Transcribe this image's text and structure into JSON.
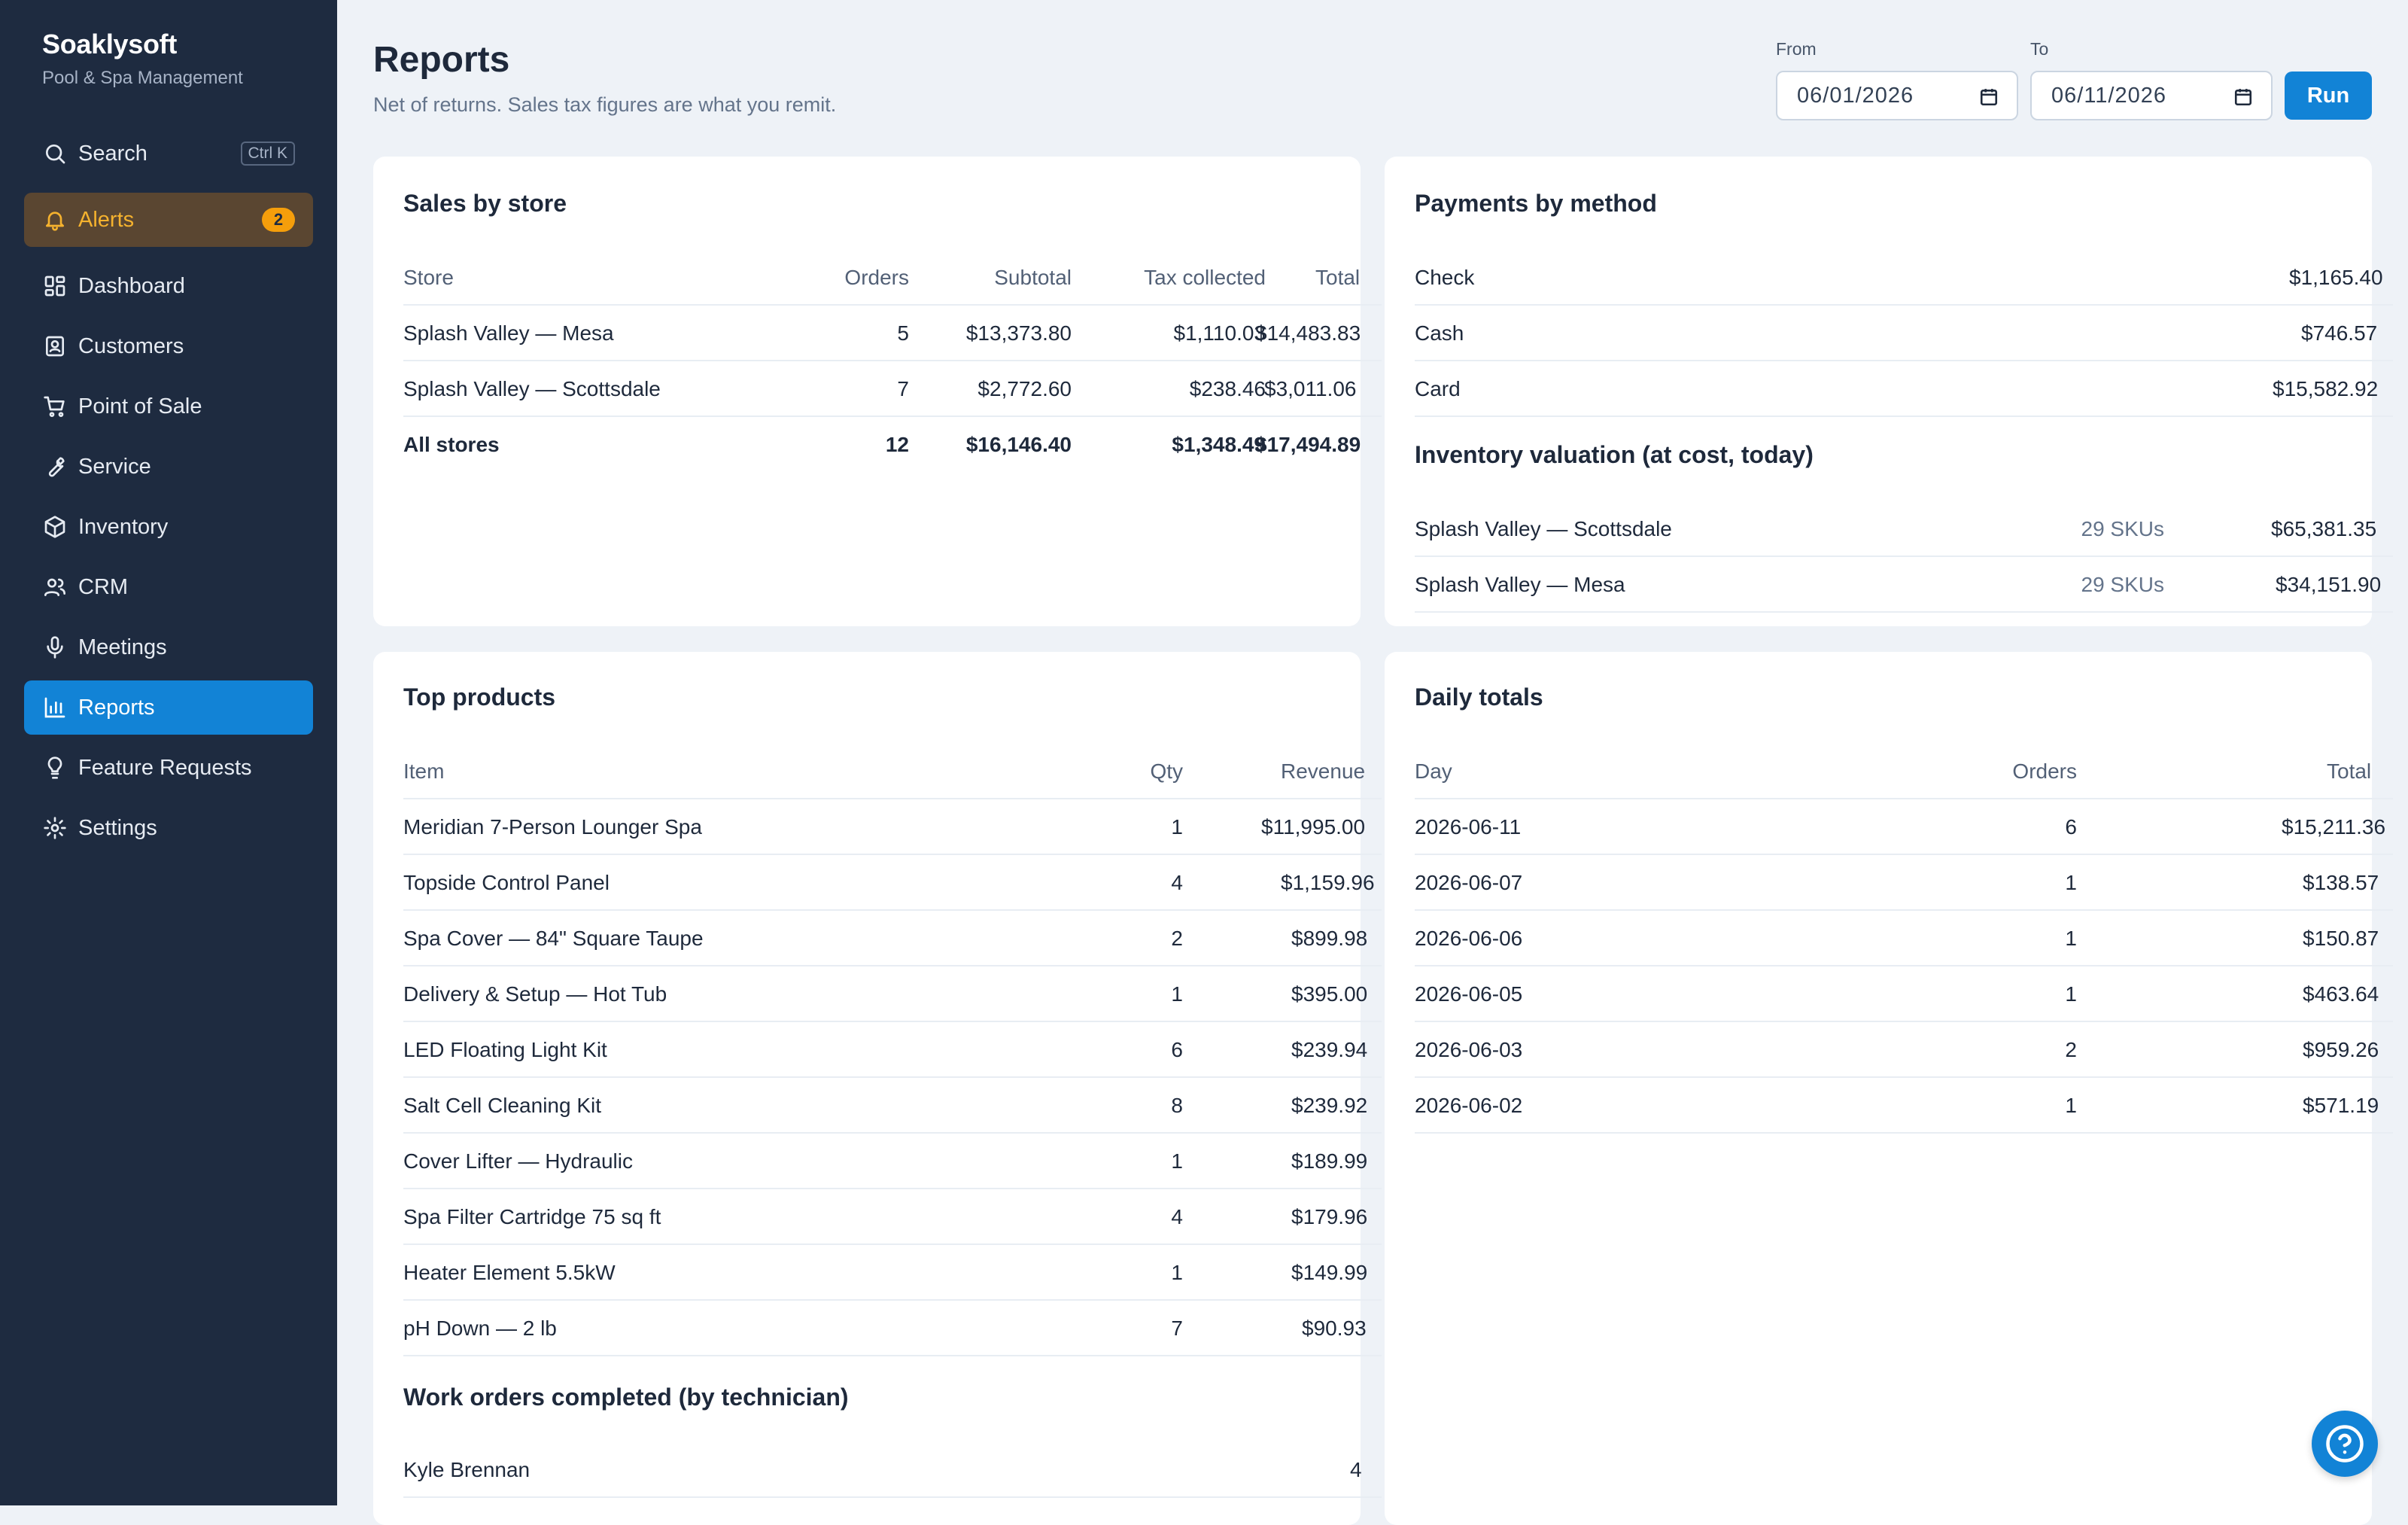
{
  "sidebar": {
    "brand_name": "Soaklysoft",
    "brand_sub": "Pool & Spa Management",
    "search_label": "Search",
    "search_shortcut": "Ctrl K",
    "alerts_label": "Alerts",
    "alerts_count": "2",
    "items": [
      {
        "label": "Dashboard",
        "icon": "grid-icon"
      },
      {
        "label": "Customers",
        "icon": "contact-icon"
      },
      {
        "label": "Point of Sale",
        "icon": "cart-icon"
      },
      {
        "label": "Service",
        "icon": "wrench-icon"
      },
      {
        "label": "Inventory",
        "icon": "box-icon"
      },
      {
        "label": "CRM",
        "icon": "users-icon"
      },
      {
        "label": "Meetings",
        "icon": "microphone-icon"
      },
      {
        "label": "Reports",
        "icon": "bar-chart-icon"
      },
      {
        "label": "Feature Requests",
        "icon": "lightbulb-icon"
      },
      {
        "label": "Settings",
        "icon": "gear-icon"
      }
    ],
    "active_item": "Reports"
  },
  "header": {
    "title": "Reports",
    "subtitle": "Net of returns. Sales tax figures are what you remit.",
    "from_label": "From",
    "from_value": "06/01/2026",
    "to_label": "To",
    "to_value": "06/11/2026",
    "run_label": "Run"
  },
  "sales_by_store": {
    "title": "Sales by store",
    "columns": [
      "Store",
      "Orders",
      "Subtotal",
      "Tax collected",
      "Total"
    ],
    "rows": [
      [
        "Splash Valley — Mesa",
        "5",
        "$13,373.80",
        "$1,110.03",
        "$14,483.83"
      ],
      [
        "Splash Valley — Scottsdale",
        "7",
        "$2,772.60",
        "$238.46",
        "$3,011.06"
      ]
    ],
    "total_row": [
      "All stores",
      "12",
      "$16,146.40",
      "$1,348.49",
      "$17,494.89"
    ]
  },
  "payments_by_method": {
    "title": "Payments by method",
    "rows": [
      [
        "Check",
        "$1,165.40"
      ],
      [
        "Cash",
        "$746.57"
      ],
      [
        "Card",
        "$15,582.92"
      ]
    ]
  },
  "inventory_valuation": {
    "title": "Inventory valuation (at cost, today)",
    "rows": [
      [
        "Splash Valley — Scottsdale",
        "29 SKUs",
        "$65,381.35"
      ],
      [
        "Splash Valley — Mesa",
        "29 SKUs",
        "$34,151.90"
      ]
    ]
  },
  "top_products": {
    "title": "Top products",
    "columns": [
      "Item",
      "Qty",
      "Revenue"
    ],
    "rows": [
      [
        "Meridian 7-Person Lounger Spa",
        "1",
        "$11,995.00"
      ],
      [
        "Topside Control Panel",
        "4",
        "$1,159.96"
      ],
      [
        "Spa Cover — 84\" Square Taupe",
        "2",
        "$899.98"
      ],
      [
        "Delivery & Setup — Hot Tub",
        "1",
        "$395.00"
      ],
      [
        "LED Floating Light Kit",
        "6",
        "$239.94"
      ],
      [
        "Salt Cell Cleaning Kit",
        "8",
        "$239.92"
      ],
      [
        "Cover Lifter — Hydraulic",
        "1",
        "$189.99"
      ],
      [
        "Spa Filter Cartridge 75 sq ft",
        "4",
        "$179.96"
      ],
      [
        "Heater Element 5.5kW",
        "1",
        "$149.99"
      ],
      [
        "pH Down — 2 lb",
        "7",
        "$90.93"
      ]
    ]
  },
  "work_orders": {
    "title": "Work orders completed (by technician)",
    "rows": [
      [
        "Kyle Brennan",
        "4"
      ]
    ]
  },
  "daily_totals": {
    "title": "Daily totals",
    "columns": [
      "Day",
      "Orders",
      "Total"
    ],
    "rows": [
      [
        "2026-06-11",
        "6",
        "$15,211.36"
      ],
      [
        "2026-06-07",
        "1",
        "$138.57"
      ],
      [
        "2026-06-06",
        "1",
        "$150.87"
      ],
      [
        "2026-06-05",
        "1",
        "$463.64"
      ],
      [
        "2026-06-03",
        "2",
        "$959.26"
      ],
      [
        "2026-06-02",
        "1",
        "$571.19"
      ]
    ]
  },
  "colors": {
    "sidebar_bg": "#1e2b40",
    "accent": "#1283d6",
    "alert": "#f59e0b",
    "page_bg": "#eef2f7"
  }
}
